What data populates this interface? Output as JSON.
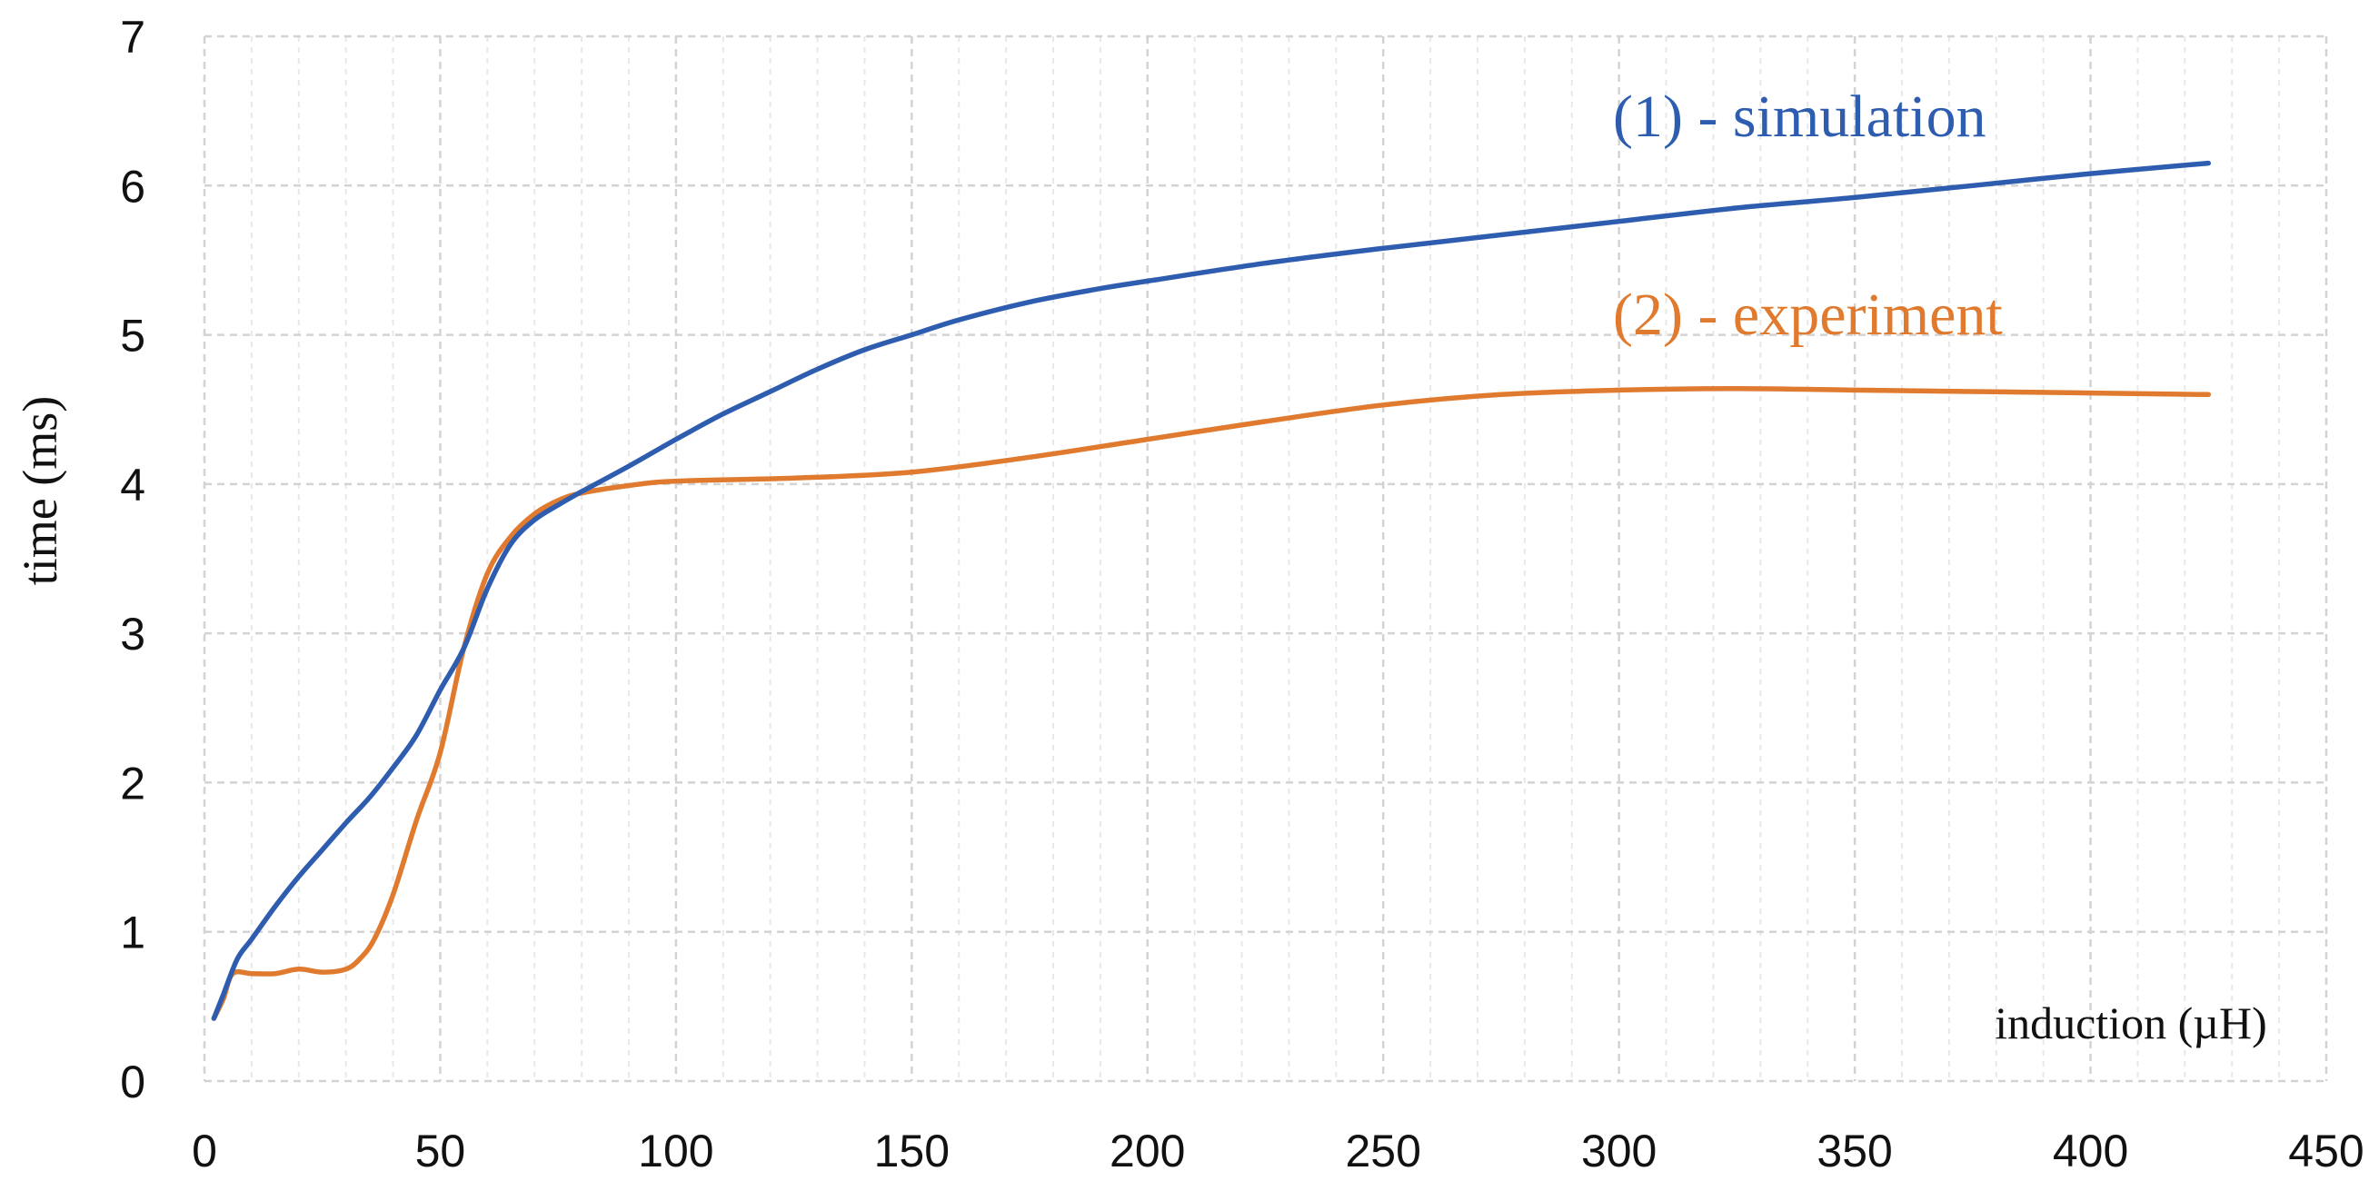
{
  "chart_data": {
    "type": "line",
    "xlabel": "induction (µH)",
    "ylabel": "time (ms)",
    "xlim": [
      0,
      450
    ],
    "ylim": [
      0,
      7
    ],
    "x_ticks": [
      0,
      50,
      100,
      150,
      200,
      250,
      300,
      350,
      400,
      450
    ],
    "y_ticks": [
      0,
      1,
      2,
      3,
      4,
      5,
      6,
      7
    ],
    "x_minor_step": 10,
    "grid": "dashed",
    "colors": {
      "simulation": "#2E5DB0",
      "experiment": "#E07A2E",
      "grid": "#d3d3d3"
    },
    "series": [
      {
        "name": "(1) - simulation",
        "color": "#2E5DB0",
        "points": [
          [
            2,
            0.42
          ],
          [
            4,
            0.58
          ],
          [
            7,
            0.82
          ],
          [
            10,
            0.95
          ],
          [
            15,
            1.17
          ],
          [
            20,
            1.37
          ],
          [
            25,
            1.55
          ],
          [
            30,
            1.73
          ],
          [
            35,
            1.9
          ],
          [
            40,
            2.1
          ],
          [
            45,
            2.32
          ],
          [
            50,
            2.62
          ],
          [
            55,
            2.9
          ],
          [
            60,
            3.3
          ],
          [
            65,
            3.6
          ],
          [
            70,
            3.76
          ],
          [
            75,
            3.86
          ],
          [
            80,
            3.95
          ],
          [
            90,
            4.12
          ],
          [
            100,
            4.3
          ],
          [
            110,
            4.47
          ],
          [
            120,
            4.62
          ],
          [
            130,
            4.77
          ],
          [
            140,
            4.9
          ],
          [
            150,
            5.0
          ],
          [
            160,
            5.1
          ],
          [
            175,
            5.22
          ],
          [
            190,
            5.31
          ],
          [
            200,
            5.36
          ],
          [
            225,
            5.48
          ],
          [
            250,
            5.58
          ],
          [
            275,
            5.67
          ],
          [
            300,
            5.76
          ],
          [
            325,
            5.85
          ],
          [
            350,
            5.92
          ],
          [
            375,
            6.0
          ],
          [
            400,
            6.08
          ],
          [
            425,
            6.15
          ]
        ]
      },
      {
        "name": "(2) - experiment",
        "color": "#E07A2E",
        "points": [
          [
            2,
            0.42
          ],
          [
            4,
            0.55
          ],
          [
            6,
            0.72
          ],
          [
            10,
            0.72
          ],
          [
            15,
            0.72
          ],
          [
            20,
            0.75
          ],
          [
            25,
            0.73
          ],
          [
            30,
            0.75
          ],
          [
            33,
            0.82
          ],
          [
            36,
            0.95
          ],
          [
            40,
            1.25
          ],
          [
            45,
            1.75
          ],
          [
            50,
            2.2
          ],
          [
            55,
            2.9
          ],
          [
            60,
            3.4
          ],
          [
            65,
            3.65
          ],
          [
            70,
            3.8
          ],
          [
            75,
            3.89
          ],
          [
            80,
            3.94
          ],
          [
            90,
            3.99
          ],
          [
            100,
            4.02
          ],
          [
            125,
            4.04
          ],
          [
            150,
            4.08
          ],
          [
            175,
            4.18
          ],
          [
            200,
            4.3
          ],
          [
            225,
            4.42
          ],
          [
            250,
            4.53
          ],
          [
            275,
            4.6
          ],
          [
            300,
            4.63
          ],
          [
            325,
            4.64
          ],
          [
            350,
            4.63
          ],
          [
            375,
            4.62
          ],
          [
            400,
            4.61
          ],
          [
            425,
            4.6
          ]
        ]
      }
    ]
  }
}
